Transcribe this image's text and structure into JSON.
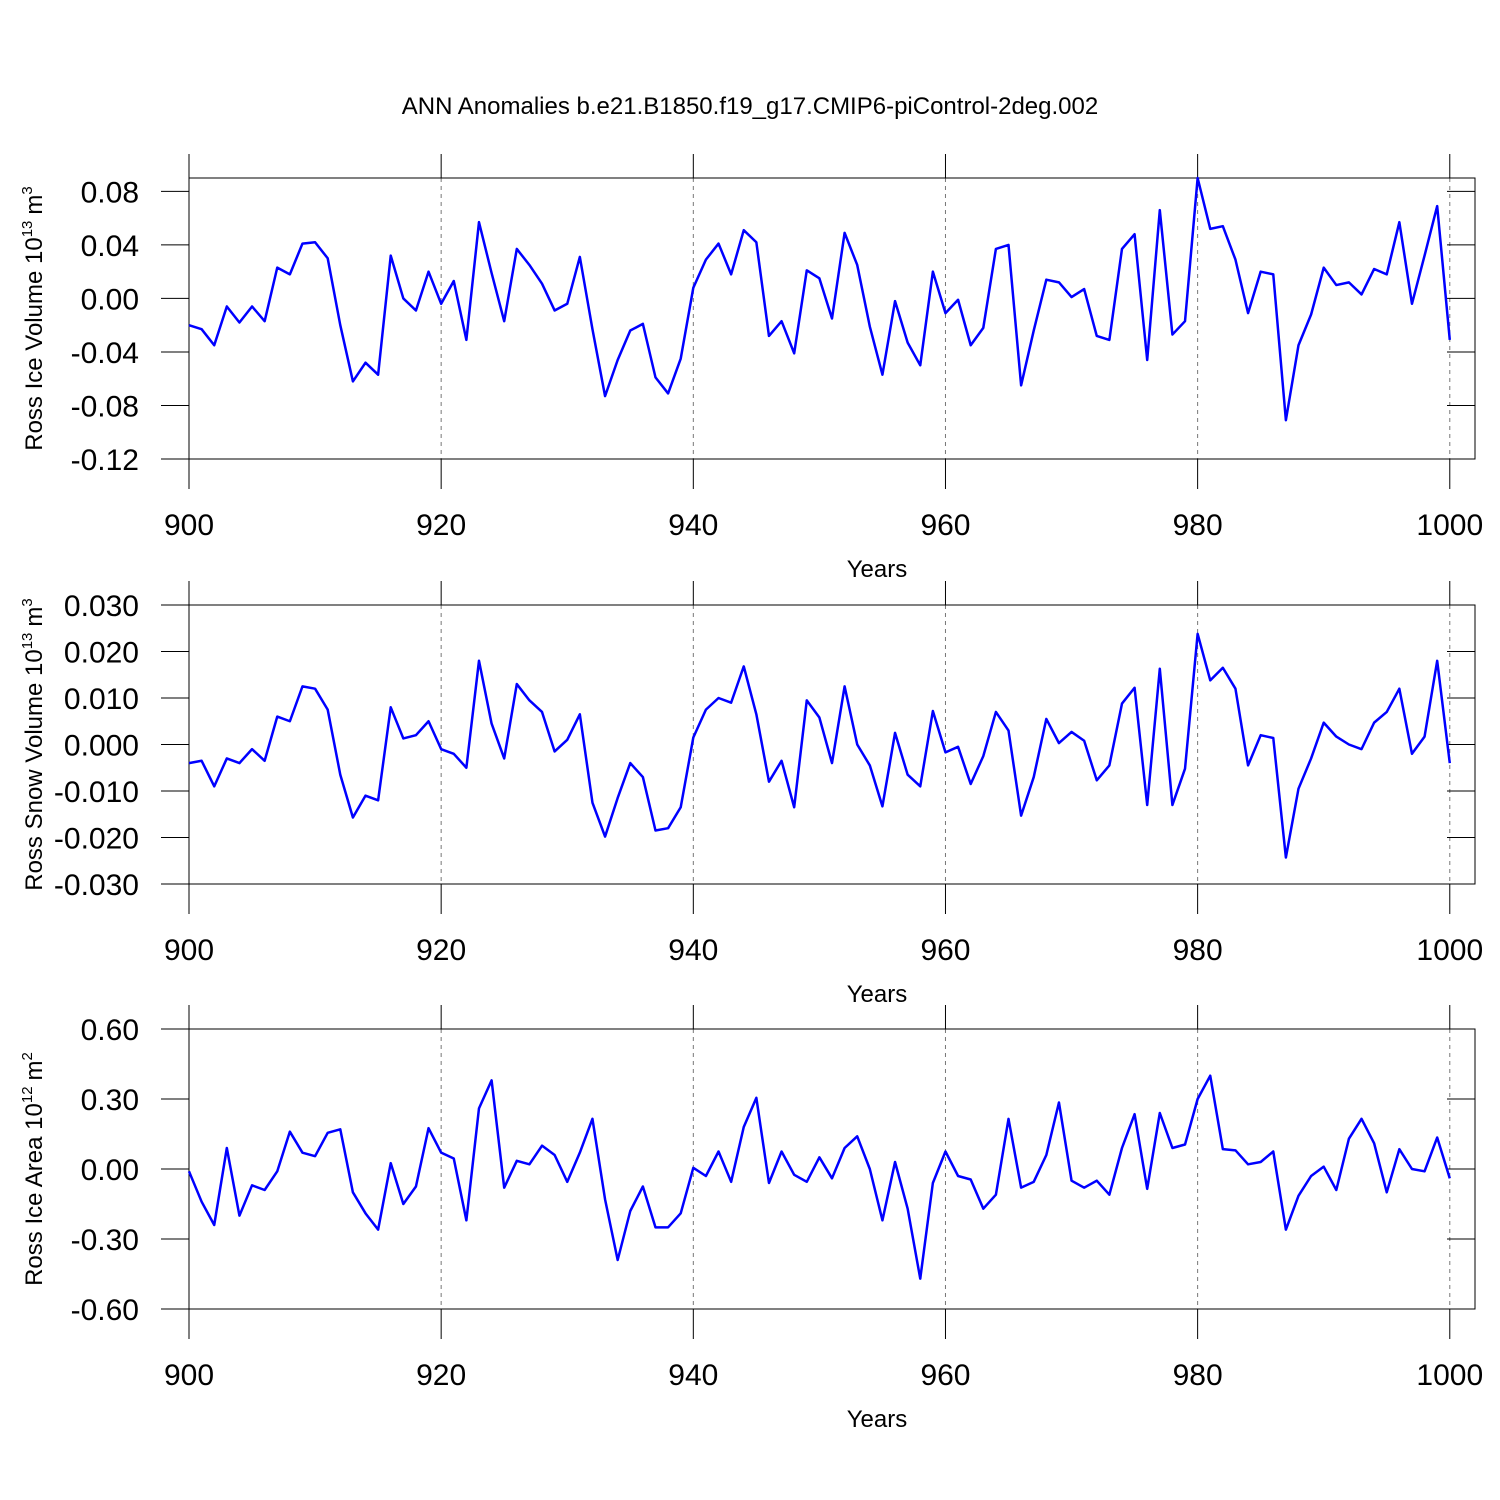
{
  "title": "ANN Anomalies b.e21.B1850.f19_g17.CMIP6-piControl-2deg.002",
  "chart_data": [
    {
      "type": "line",
      "x_label": "Years",
      "y_label": "Ross Ice Volume",
      "y_unit": {
        "base": "10",
        "power": "13",
        "unit": "m",
        "unit_power": "3"
      },
      "color": "#0000ff",
      "x_grid": true,
      "xlim": [
        900,
        1002
      ],
      "xticks": [
        900,
        920,
        940,
        960,
        980,
        1000
      ],
      "ylim": [
        -0.12,
        0.09
      ],
      "yticks": [
        -0.12,
        -0.08,
        -0.04,
        {
          "value": 0,
          "label": "0.00"
        },
        0.04,
        0.08
      ],
      "x": [
        900,
        901,
        902,
        903,
        904,
        905,
        906,
        907,
        908,
        909,
        910,
        911,
        912,
        913,
        914,
        915,
        916,
        917,
        918,
        919,
        920,
        921,
        922,
        923,
        924,
        925,
        926,
        927,
        928,
        929,
        930,
        931,
        932,
        933,
        934,
        935,
        936,
        937,
        938,
        939,
        940,
        941,
        942,
        943,
        944,
        945,
        946,
        947,
        948,
        949,
        950,
        951,
        952,
        953,
        954,
        955,
        956,
        957,
        958,
        959,
        960,
        961,
        962,
        963,
        964,
        965,
        966,
        967,
        968,
        969,
        970,
        971,
        972,
        973,
        974,
        975,
        976,
        977,
        978,
        979,
        980,
        981,
        982,
        983,
        984,
        985,
        986,
        987,
        988,
        989,
        990,
        991,
        992,
        993,
        994,
        995,
        996,
        997,
        998,
        999,
        1000
      ],
      "values": [
        -0.02,
        -0.023,
        -0.035,
        -0.006,
        -0.018,
        -0.006,
        -0.017,
        0.023,
        0.018,
        0.041,
        0.042,
        0.03,
        -0.02,
        -0.062,
        -0.048,
        -0.057,
        0.032,
        0.0,
        -0.009,
        0.02,
        -0.004,
        0.013,
        -0.031,
        0.057,
        0.019,
        -0.017,
        0.037,
        0.025,
        0.011,
        -0.009,
        -0.004,
        0.031,
        -0.023,
        -0.073,
        -0.046,
        -0.024,
        -0.019,
        -0.059,
        -0.071,
        -0.045,
        0.008,
        0.029,
        0.041,
        0.018,
        0.051,
        0.042,
        -0.028,
        -0.017,
        -0.041,
        0.021,
        0.015,
        -0.015,
        0.049,
        0.025,
        -0.021,
        -0.057,
        -0.002,
        -0.033,
        -0.05,
        0.02,
        -0.011,
        -0.001,
        -0.035,
        -0.022,
        0.037,
        0.04,
        -0.065,
        -0.024,
        0.014,
        0.012,
        0.001,
        0.007,
        -0.028,
        -0.031,
        0.037,
        0.048,
        -0.046,
        0.066,
        -0.027,
        -0.017,
        0.09,
        0.052,
        0.054,
        0.029,
        -0.011,
        0.02,
        0.018,
        -0.091,
        -0.035,
        -0.012,
        0.023,
        0.01,
        0.012,
        0.003,
        0.022,
        0.018,
        0.057,
        -0.004,
        0.032,
        0.069,
        -0.031
      ]
    },
    {
      "type": "line",
      "x_label": "Years",
      "y_label": "Ross Snow Volume",
      "y_unit": {
        "base": "10",
        "power": "13",
        "unit": "m",
        "unit_power": "3"
      },
      "color": "#0000ff",
      "x_grid": true,
      "xlim": [
        900,
        1002
      ],
      "xticks": [
        900,
        920,
        940,
        960,
        980,
        1000
      ],
      "ylim": [
        -0.03,
        0.03
      ],
      "yticks": [
        {
          "value": -0.03,
          "label": "-0.030"
        },
        {
          "value": -0.02,
          "label": "-0.020"
        },
        {
          "value": -0.01,
          "label": "-0.010"
        },
        {
          "value": 0,
          "label": "0.000"
        },
        {
          "value": 0.01,
          "label": "0.010"
        },
        {
          "value": 0.02,
          "label": "0.020"
        },
        {
          "value": 0.03,
          "label": "0.030"
        }
      ],
      "x": [
        900,
        901,
        902,
        903,
        904,
        905,
        906,
        907,
        908,
        909,
        910,
        911,
        912,
        913,
        914,
        915,
        916,
        917,
        918,
        919,
        920,
        921,
        922,
        923,
        924,
        925,
        926,
        927,
        928,
        929,
        930,
        931,
        932,
        933,
        934,
        935,
        936,
        937,
        938,
        939,
        940,
        941,
        942,
        943,
        944,
        945,
        946,
        947,
        948,
        949,
        950,
        951,
        952,
        953,
        954,
        955,
        956,
        957,
        958,
        959,
        960,
        961,
        962,
        963,
        964,
        965,
        966,
        967,
        968,
        969,
        970,
        971,
        972,
        973,
        974,
        975,
        976,
        977,
        978,
        979,
        980,
        981,
        982,
        983,
        984,
        985,
        986,
        987,
        988,
        989,
        990,
        991,
        992,
        993,
        994,
        995,
        996,
        997,
        998,
        999,
        1000
      ],
      "values": [
        -0.004,
        -0.0035,
        -0.009,
        -0.003,
        -0.004,
        -0.001,
        -0.0035,
        0.006,
        0.005,
        0.0125,
        0.012,
        0.0075,
        -0.0065,
        -0.0157,
        -0.011,
        -0.012,
        0.008,
        0.0013,
        0.002,
        0.005,
        -0.001,
        -0.002,
        -0.005,
        0.018,
        0.0045,
        -0.003,
        0.013,
        0.0095,
        0.007,
        -0.0015,
        0.001,
        0.0065,
        -0.0125,
        -0.0198,
        -0.0115,
        -0.004,
        -0.007,
        -0.0185,
        -0.018,
        -0.0135,
        0.0015,
        0.0075,
        0.01,
        0.009,
        0.0168,
        0.0065,
        -0.008,
        -0.0035,
        -0.0135,
        0.0095,
        0.0058,
        -0.004,
        0.0125,
        0.0,
        -0.0045,
        -0.0133,
        0.0025,
        -0.0065,
        -0.009,
        0.0072,
        -0.0017,
        -0.0005,
        -0.0085,
        -0.0025,
        0.007,
        0.003,
        -0.0153,
        -0.007,
        0.0055,
        0.0003,
        0.0027,
        0.0008,
        -0.0077,
        -0.0045,
        0.0088,
        0.0122,
        -0.013,
        0.0163,
        -0.013,
        -0.0052,
        0.0238,
        0.0138,
        0.0165,
        0.012,
        -0.0045,
        0.002,
        0.0014,
        -0.0243,
        -0.0095,
        -0.003,
        0.0047,
        0.0017,
        0.0,
        -0.001,
        0.0047,
        0.007,
        0.012,
        -0.002,
        0.0017,
        0.018,
        -0.004
      ]
    },
    {
      "type": "line",
      "x_label": "Years",
      "y_label": "Ross Ice Area",
      "y_unit": {
        "base": "10",
        "power": "12",
        "unit": "m",
        "unit_power": "2"
      },
      "color": "#0000ff",
      "x_grid": true,
      "xlim": [
        900,
        1002
      ],
      "xticks": [
        900,
        920,
        940,
        960,
        980,
        1000
      ],
      "ylim": [
        -0.6,
        0.6
      ],
      "yticks": [
        {
          "value": -0.6,
          "label": "-0.60"
        },
        {
          "value": -0.3,
          "label": "-0.30"
        },
        {
          "value": 0,
          "label": "0.00"
        },
        {
          "value": 0.3,
          "label": "0.30"
        },
        {
          "value": 0.6,
          "label": "0.60"
        }
      ],
      "x": [
        900,
        901,
        902,
        903,
        904,
        905,
        906,
        907,
        908,
        909,
        910,
        911,
        912,
        913,
        914,
        915,
        916,
        917,
        918,
        919,
        920,
        921,
        922,
        923,
        924,
        925,
        926,
        927,
        928,
        929,
        930,
        931,
        932,
        933,
        934,
        935,
        936,
        937,
        938,
        939,
        940,
        941,
        942,
        943,
        944,
        945,
        946,
        947,
        948,
        949,
        950,
        951,
        952,
        953,
        954,
        955,
        956,
        957,
        958,
        959,
        960,
        961,
        962,
        963,
        964,
        965,
        966,
        967,
        968,
        969,
        970,
        971,
        972,
        973,
        974,
        975,
        976,
        977,
        978,
        979,
        980,
        981,
        982,
        983,
        984,
        985,
        986,
        987,
        988,
        989,
        990,
        991,
        992,
        993,
        994,
        995,
        996,
        997,
        998,
        999,
        1000
      ],
      "values": [
        -0.01,
        -0.14,
        -0.24,
        0.09,
        -0.2,
        -0.07,
        -0.09,
        -0.01,
        0.16,
        0.07,
        0.055,
        0.155,
        0.17,
        -0.1,
        -0.19,
        -0.26,
        0.025,
        -0.15,
        -0.075,
        0.175,
        0.07,
        0.045,
        -0.22,
        0.26,
        0.38,
        -0.08,
        0.035,
        0.02,
        0.1,
        0.06,
        -0.055,
        0.07,
        0.215,
        -0.13,
        -0.39,
        -0.18,
        -0.075,
        -0.25,
        -0.25,
        -0.19,
        0.005,
        -0.03,
        0.075,
        -0.055,
        0.18,
        0.305,
        -0.06,
        0.075,
        -0.025,
        -0.055,
        0.05,
        -0.04,
        0.09,
        0.14,
        0.0,
        -0.22,
        0.03,
        -0.17,
        -0.47,
        -0.06,
        0.075,
        -0.03,
        -0.045,
        -0.17,
        -0.11,
        0.215,
        -0.08,
        -0.055,
        0.06,
        0.285,
        -0.05,
        -0.08,
        -0.05,
        -0.11,
        0.09,
        0.235,
        -0.085,
        0.24,
        0.09,
        0.105,
        0.3,
        0.4,
        0.085,
        0.08,
        0.02,
        0.03,
        0.075,
        -0.26,
        -0.115,
        -0.03,
        0.01,
        -0.09,
        0.13,
        0.215,
        0.11,
        -0.1,
        0.085,
        0.0,
        -0.01,
        0.135,
        -0.04
      ]
    }
  ]
}
